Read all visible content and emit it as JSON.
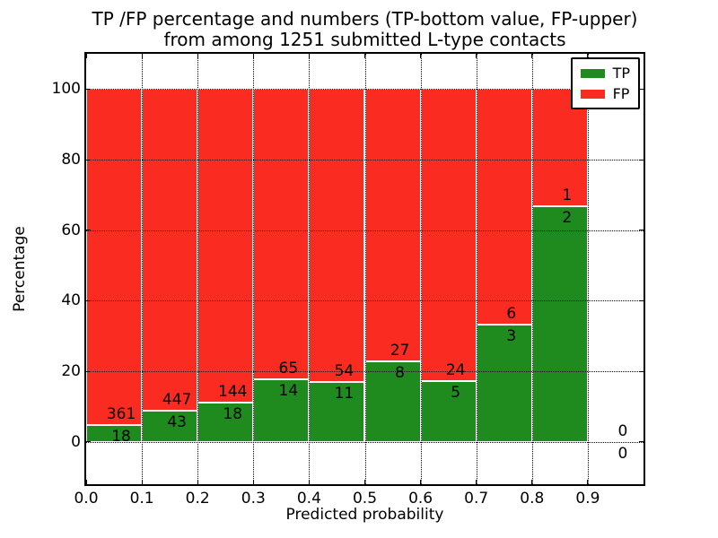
{
  "figure": {
    "title_line1": "TP /FP percentage and numbers (TP-bottom value, FP-upper)",
    "title_line2": "from among 1251 submitted L-type contacts"
  },
  "chart_data": {
    "type": "bar",
    "stacked": true,
    "title": "TP /FP percentage and numbers (TP-bottom value, FP-upper) from among 1251 submitted L-type contacts",
    "xlabel": "Predicted probability",
    "ylabel": "Percentage",
    "xlim": [
      0.0,
      1.0
    ],
    "ylim": [
      -12,
      110
    ],
    "x_tick_values": [
      0.0,
      0.1,
      0.2,
      0.3,
      0.4,
      0.5,
      0.6,
      0.7,
      0.8,
      0.9
    ],
    "x_tick_labels": [
      "0.0",
      "0.1",
      "0.2",
      "0.3",
      "0.4",
      "0.5",
      "0.6",
      "0.7",
      "0.8",
      "0.9"
    ],
    "y_tick_values": [
      0,
      20,
      40,
      60,
      80,
      100
    ],
    "y_tick_labels": [
      "0",
      "20",
      "40",
      "60",
      "80",
      "100"
    ],
    "grid": true,
    "grid_style": "dotted",
    "legend": {
      "position": "upper right",
      "entries": [
        {
          "label": "TP",
          "color": "#1f8b1f"
        },
        {
          "label": "FP",
          "color": "#fa2b20"
        }
      ]
    },
    "bins": [
      {
        "x_range": [
          0.0,
          0.1
        ],
        "tp": 18,
        "fp": 361
      },
      {
        "x_range": [
          0.1,
          0.2
        ],
        "tp": 43,
        "fp": 447
      },
      {
        "x_range": [
          0.2,
          0.3
        ],
        "tp": 18,
        "fp": 144
      },
      {
        "x_range": [
          0.3,
          0.4
        ],
        "tp": 14,
        "fp": 65
      },
      {
        "x_range": [
          0.4,
          0.5
        ],
        "tp": 11,
        "fp": 54
      },
      {
        "x_range": [
          0.5,
          0.6
        ],
        "tp": 8,
        "fp": 27
      },
      {
        "x_range": [
          0.6,
          0.7
        ],
        "tp": 5,
        "fp": 24
      },
      {
        "x_range": [
          0.7,
          0.8
        ],
        "tp": 3,
        "fp": 6
      },
      {
        "x_range": [
          0.8,
          0.9
        ],
        "tp": 2,
        "fp": 1
      },
      {
        "x_range": [
          0.9,
          1.0
        ],
        "tp": 0,
        "fp": 0
      }
    ]
  }
}
